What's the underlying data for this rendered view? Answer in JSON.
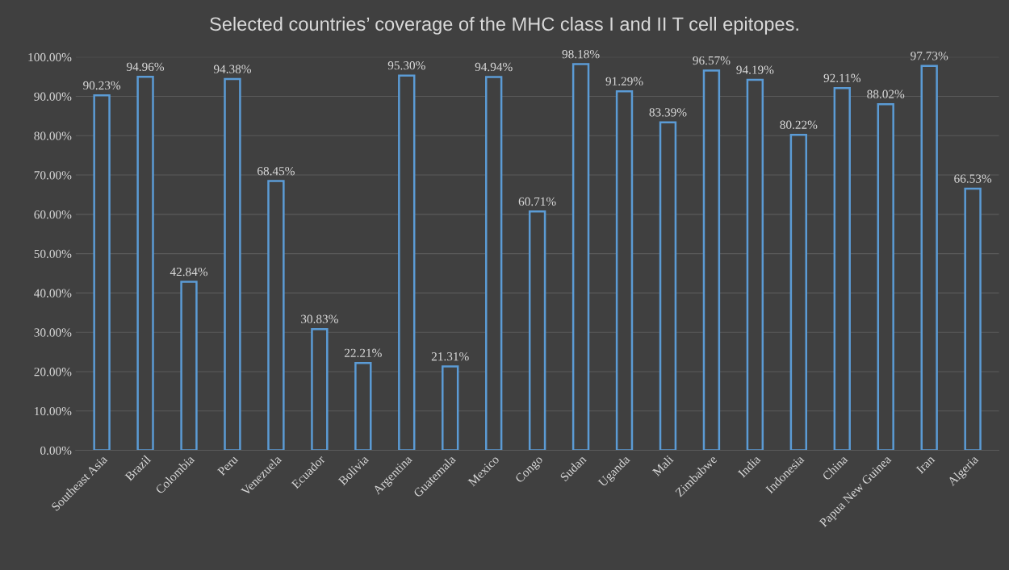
{
  "chart_data": {
    "type": "bar",
    "title": "Selected countries’ coverage of the MHC class I and II T cell epitopes.",
    "categories": [
      "Southeast Asia",
      "Brazil",
      "Colombia",
      "Peru",
      "Venezuela",
      "Ecuador",
      "Bolivia",
      "Argentina",
      "Guatemala",
      "Mexico",
      "Congo",
      "Sudan",
      "Uganda",
      "Mali",
      "Zimbabwe",
      "India",
      "Indonesia",
      "China",
      "Papua New Guinea",
      "Iran",
      "Algeria"
    ],
    "values": [
      90.23,
      94.96,
      42.84,
      94.38,
      68.45,
      30.83,
      22.21,
      95.3,
      21.31,
      94.94,
      60.71,
      98.18,
      91.29,
      83.39,
      96.57,
      94.19,
      80.22,
      92.11,
      88.02,
      97.73,
      66.53
    ],
    "value_labels": [
      "90.23%",
      "94.96%",
      "42.84%",
      "94.38%",
      "68.45%",
      "30.83%",
      "22.21%",
      "95.30%",
      "21.31%",
      "94.94%",
      "60.71%",
      "98.18%",
      "91.29%",
      "83.39%",
      "96.57%",
      "94.19%",
      "80.22%",
      "92.11%",
      "88.02%",
      "97.73%",
      "66.53%"
    ],
    "color": "#5b9bd5",
    "ylim": [
      0,
      100
    ],
    "yticks": [
      {
        "value": 0,
        "label": "0.00%"
      },
      {
        "value": 10,
        "label": "10.00%"
      },
      {
        "value": 20,
        "label": "20.00%"
      },
      {
        "value": 30,
        "label": "30.00%"
      },
      {
        "value": 40,
        "label": "40.00%"
      },
      {
        "value": 50,
        "label": "50.00%"
      },
      {
        "value": 60,
        "label": "60.00%"
      },
      {
        "value": 70,
        "label": "70.00%"
      },
      {
        "value": 80,
        "label": "80.00%"
      },
      {
        "value": 90,
        "label": "90.00%"
      },
      {
        "value": 100,
        "label": "100.00%"
      }
    ],
    "grid": "y",
    "legend": false
  }
}
